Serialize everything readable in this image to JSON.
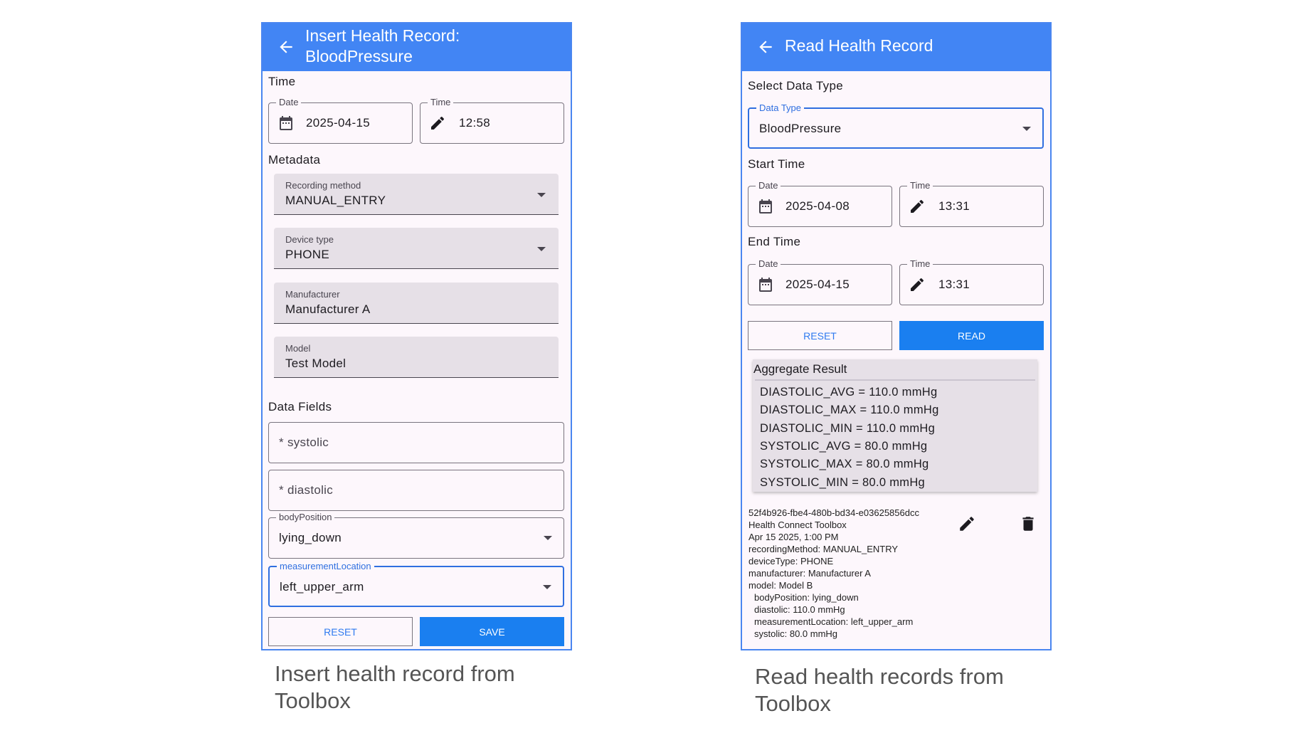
{
  "insert": {
    "title_line1": "Insert Health Record:",
    "title_line2": "BloodPressure",
    "time_section": "Time",
    "date_label": "Date",
    "date_value": "2025-04-15",
    "time_label": "Time",
    "time_value": "12:58",
    "metadata_section": "Metadata",
    "recording_method_label": "Recording method",
    "recording_method_value": "MANUAL_ENTRY",
    "device_type_label": "Device type",
    "device_type_value": "PHONE",
    "manufacturer_label": "Manufacturer",
    "manufacturer_value": "Manufacturer A",
    "model_label": "Model",
    "model_value": "Test Model",
    "data_fields_section": "Data Fields",
    "systolic_placeholder": "* systolic",
    "diastolic_placeholder": "* diastolic",
    "body_position_label": "bodyPosition",
    "body_position_value": "lying_down",
    "measurement_location_label": "measurementLocation",
    "measurement_location_value": "left_upper_arm",
    "reset_label": "RESET",
    "save_label": "SAVE",
    "caption": "Insert health record from Toolbox"
  },
  "read": {
    "title": "Read Health Record",
    "select_section": "Select Data Type",
    "data_type_label": "Data Type",
    "data_type_value": "BloodPressure",
    "start_section": "Start Time",
    "start_date_label": "Date",
    "start_date_value": "2025-04-08",
    "start_time_label": "Time",
    "start_time_value": "13:31",
    "end_section": "End Time",
    "end_date_label": "Date",
    "end_date_value": "2025-04-15",
    "end_time_label": "Time",
    "end_time_value": "13:31",
    "reset_label": "RESET",
    "read_label": "READ",
    "aggregate_title": "Aggregate Result",
    "aggregate_items": [
      "DIASTOLIC_AVG = 110.0 mmHg",
      "DIASTOLIC_MAX = 110.0 mmHg",
      "DIASTOLIC_MIN = 110.0 mmHg",
      "SYSTOLIC_AVG = 80.0 mmHg",
      "SYSTOLIC_MAX = 80.0 mmHg",
      "SYSTOLIC_MIN = 80.0 mmHg"
    ],
    "record_lines": [
      "52f4b926-fbe4-480b-bd34-e03625856dcc",
      "Health Connect Toolbox",
      "Apr 15 2025, 1:00 PM",
      "recordingMethod: MANUAL_ENTRY",
      "deviceType: PHONE",
      "manufacturer: Manufacturer A",
      "model: Model B",
      "  bodyPosition: lying_down",
      "  diastolic: 110.0 mmHg",
      "  measurementLocation: left_upper_arm",
      "  systolic: 80.0 mmHg"
    ],
    "caption": "Read health records from Toolbox"
  },
  "colors": {
    "header": "#4285f4",
    "primary_button": "#1a7ff0",
    "filled_field": "#e6e0e7",
    "panel_bg": "#fdf7fc"
  },
  "icons": [
    "arrow-back-icon",
    "calendar-icon",
    "pencil-icon",
    "dropdown-arrow-icon",
    "delete-icon"
  ]
}
